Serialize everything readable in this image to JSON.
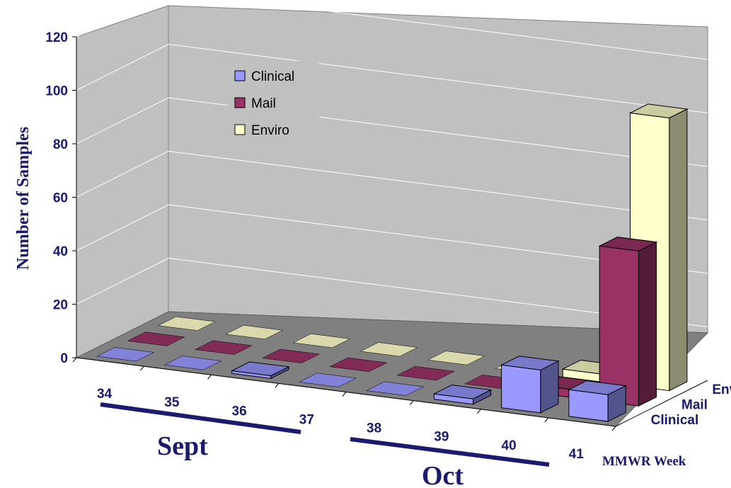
{
  "chart_data": {
    "type": "bar",
    "style": "3d-column",
    "title": "",
    "ylabel": "Number of Samples",
    "xlabel": "MMWR Week",
    "ylim": [
      0,
      120
    ],
    "yticks": [
      0,
      20,
      40,
      60,
      80,
      100,
      120
    ],
    "categories": [
      "34",
      "35",
      "36",
      "37",
      "38",
      "39",
      "40",
      "41"
    ],
    "series": [
      {
        "name": "Clinical",
        "color": "#9999ff",
        "values": [
          0,
          0,
          1,
          0,
          0,
          2,
          16,
          10
        ]
      },
      {
        "name": "Mail",
        "color": "#993366",
        "values": [
          0,
          0,
          0,
          0,
          0,
          0,
          3,
          58
        ]
      },
      {
        "name": "Enviro",
        "color": "#ffffcc",
        "values": [
          0,
          0,
          0,
          0,
          0,
          0,
          3,
          102
        ]
      }
    ],
    "legend": {
      "position": "top-left",
      "entries": [
        "Clinical",
        "Mail",
        "Enviro"
      ]
    },
    "gridlines": true,
    "month_groups": [
      {
        "label": "Sept",
        "weeks": [
          "34",
          "35",
          "36",
          "37"
        ]
      },
      {
        "label": "Oct",
        "weeks": [
          "38",
          "39",
          "40",
          "41"
        ]
      }
    ]
  }
}
